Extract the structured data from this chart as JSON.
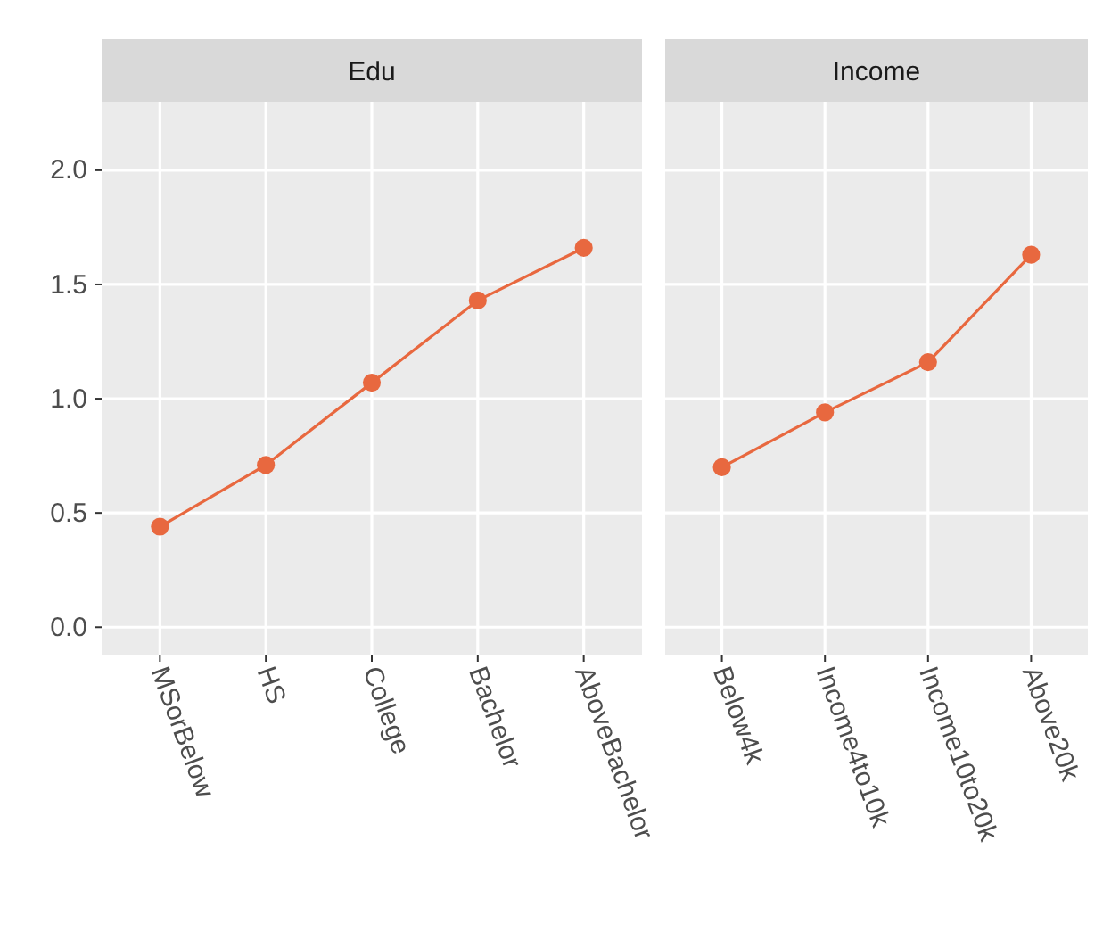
{
  "chart_data": [
    {
      "type": "line",
      "title": "Edu",
      "categories": [
        "MSorBelow",
        "HS",
        "College",
        "Bachelor",
        "AboveBachelor"
      ],
      "series": [
        {
          "color": "#e8683f",
          "values": [
            0.44,
            0.71,
            1.07,
            1.43,
            1.66
          ]
        }
      ],
      "ylim": [
        -0.12,
        2.3
      ],
      "yticks": [
        {
          "value": 0,
          "label": "0.0"
        },
        {
          "value": 0.5,
          "label": "0.5"
        },
        {
          "value": 1,
          "label": "1.0"
        },
        {
          "value": 1.5,
          "label": "1.5"
        },
        {
          "value": 2,
          "label": "2.0"
        }
      ],
      "grid": true,
      "marker": "circle",
      "line_style": "solid"
    },
    {
      "type": "line",
      "title": "Income",
      "categories": [
        "Below4k",
        "Income4to10k",
        "Income10to20k",
        "Above20k"
      ],
      "series": [
        {
          "color": "#e8683f",
          "values": [
            0.7,
            0.94,
            1.16,
            1.63
          ]
        }
      ],
      "ylim": [
        -0.12,
        2.3
      ],
      "yticks": [
        0,
        0.5,
        1,
        1.5,
        2
      ],
      "grid": true,
      "marker": "circle",
      "line_style": "solid",
      "tick_labels": "x"
    }
  ]
}
